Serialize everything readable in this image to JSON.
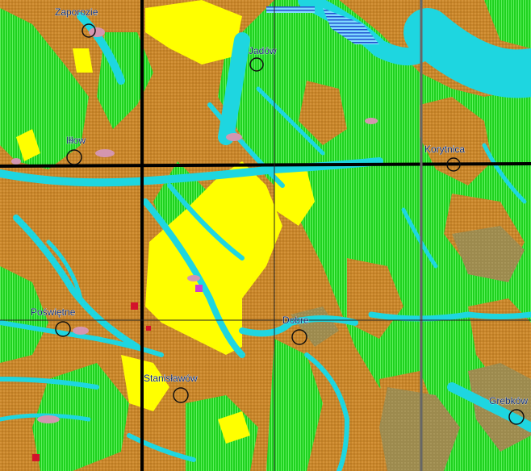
{
  "map": {
    "colors": {
      "orange_soil": "#c8862a",
      "green_soil": "#1fd21f",
      "yellow_sand": "#ffff00",
      "cyan_valley": "#1ed6e0",
      "olive_soil": "#9c8a4e",
      "pink_patch": "#d496b0",
      "grid_line": "#000000",
      "town_circle": "#101010",
      "town_text": "#0d2a6b",
      "red_marker": "#d3122b",
      "magenta_marker": "#d03ad0"
    },
    "towns": [
      {
        "name": "Zaporozie"
      },
      {
        "name": "Jadów"
      },
      {
        "name": "Iłłow"
      },
      {
        "name": "Korytnica"
      },
      {
        "name": "Poświętne"
      },
      {
        "name": "Dobre"
      },
      {
        "name": "Stanisławów"
      },
      {
        "name": "Grebków"
      }
    ]
  }
}
